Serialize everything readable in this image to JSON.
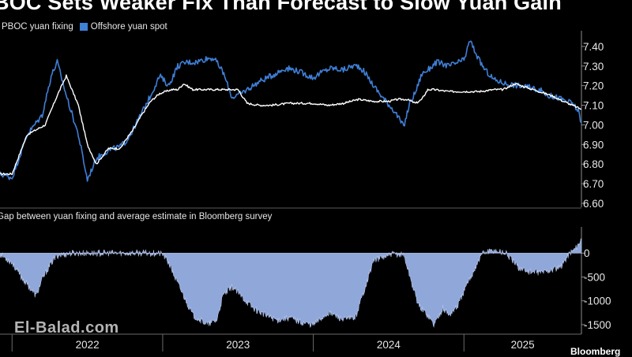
{
  "header": {
    "title": "BOC Sets Weaker Fix Than Forecast to Slow Yuan Gain"
  },
  "legend": [
    {
      "label": "PBOC yuan fixing",
      "color": "#ffffff"
    },
    {
      "label": "Offshore yuan spot",
      "color": "#3f7fd6"
    }
  ],
  "subtitle": "Gap between yuan fixing and average estimate in Bloomberg survey",
  "watermark": "El-Balad.com",
  "credit": "Bloomberg",
  "colors": {
    "background": "#000000",
    "fixing": "#ffffff",
    "spot": "#3f7fd6",
    "gap_fill": "#8fa7d9",
    "axis": "#8a8a8a"
  },
  "chart_data": [
    {
      "type": "line",
      "title": "BOC Sets Weaker Fix Than Forecast to Slow Yuan Gain",
      "xlabel": "",
      "ylabel": "",
      "x_tick_labels": [
        "2022",
        "2023",
        "2024",
        "2025"
      ],
      "y_ticks": [
        6.6,
        6.7,
        6.8,
        6.9,
        7.0,
        7.1,
        7.2,
        7.3,
        7.4
      ],
      "y_tick_labels": [
        "6.60",
        "6.70",
        "6.80",
        "6.90",
        "7.00",
        "7.10",
        "7.20",
        "7.30",
        "7.40"
      ],
      "ylim": [
        6.58,
        7.48
      ],
      "xlim": [
        2021.92,
        2025.78
      ],
      "series": [
        {
          "name": "PBOC yuan fixing",
          "x": [
            2021.92,
            2022.0,
            2022.1,
            2022.22,
            2022.3,
            2022.36,
            2022.44,
            2022.5,
            2022.56,
            2022.64,
            2022.72,
            2022.76,
            2022.8,
            2022.86,
            2022.92,
            2022.98,
            2023.06,
            2023.1,
            2023.14,
            2023.2,
            2023.3,
            2023.4,
            2023.5,
            2023.56,
            2023.64,
            2023.72,
            2023.84,
            2024.0,
            2024.1,
            2024.2,
            2024.3,
            2024.4,
            2024.5,
            2024.56,
            2024.62,
            2024.68,
            2024.72,
            2024.76,
            2024.8,
            2024.9,
            2025.0,
            2025.1,
            2025.2,
            2025.26,
            2025.34,
            2025.42,
            2025.5,
            2025.58,
            2025.66,
            2025.72,
            2025.78
          ],
          "values": [
            6.75,
            6.75,
            6.95,
            7.0,
            7.15,
            7.25,
            7.1,
            6.9,
            6.8,
            6.88,
            6.88,
            6.93,
            6.97,
            7.05,
            7.12,
            7.16,
            7.18,
            7.18,
            7.21,
            7.18,
            7.18,
            7.18,
            7.18,
            7.11,
            7.1,
            7.1,
            7.11,
            7.11,
            7.1,
            7.11,
            7.13,
            7.12,
            7.12,
            7.13,
            7.13,
            7.11,
            7.13,
            7.18,
            7.18,
            7.17,
            7.17,
            7.17,
            7.18,
            7.18,
            7.21,
            7.19,
            7.17,
            7.15,
            7.12,
            7.1,
            7.08
          ]
        },
        {
          "name": "Offshore yuan spot",
          "x": [
            2021.92,
            2022.0,
            2022.1,
            2022.2,
            2022.26,
            2022.3,
            2022.36,
            2022.44,
            2022.5,
            2022.56,
            2022.64,
            2022.72,
            2022.76,
            2022.8,
            2022.86,
            2022.92,
            2022.98,
            2023.04,
            2023.1,
            2023.16,
            2023.22,
            2023.3,
            2023.34,
            2023.4,
            2023.46,
            2023.52,
            2023.56,
            2023.64,
            2023.72,
            2023.82,
            2023.88,
            2023.94,
            2024.0,
            2024.06,
            2024.12,
            2024.2,
            2024.26,
            2024.3,
            2024.34,
            2024.4,
            2024.46,
            2024.54,
            2024.6,
            2024.64,
            2024.68,
            2024.72,
            2024.76,
            2024.82,
            2024.9,
            2025.0,
            2025.04,
            2025.1,
            2025.14,
            2025.2,
            2025.28,
            2025.36,
            2025.44,
            2025.5,
            2025.56,
            2025.62,
            2025.68,
            2025.72,
            2025.76,
            2025.78
          ],
          "values": [
            6.75,
            6.73,
            6.95,
            7.05,
            7.25,
            7.32,
            7.15,
            6.95,
            6.72,
            6.83,
            6.87,
            6.89,
            6.92,
            6.97,
            7.06,
            7.15,
            7.25,
            7.2,
            7.3,
            7.32,
            7.32,
            7.34,
            7.34,
            7.27,
            7.14,
            7.16,
            7.18,
            7.22,
            7.25,
            7.29,
            7.28,
            7.26,
            7.24,
            7.27,
            7.29,
            7.28,
            7.3,
            7.3,
            7.27,
            7.2,
            7.14,
            7.07,
            6.99,
            7.11,
            7.17,
            7.26,
            7.28,
            7.32,
            7.3,
            7.33,
            7.43,
            7.33,
            7.28,
            7.23,
            7.21,
            7.2,
            7.19,
            7.18,
            7.15,
            7.14,
            7.12,
            7.11,
            7.07,
            7.01
          ]
        }
      ]
    },
    {
      "type": "area",
      "title": "Gap between yuan fixing and average estimate in Bloomberg survey",
      "xlabel": "",
      "ylabel": "",
      "x_tick_labels": [
        "2022",
        "2023",
        "2024",
        "2025"
      ],
      "y_ticks": [
        0,
        -500,
        -1000,
        -1500
      ],
      "y_tick_labels": [
        "0",
        "-500",
        "-1000",
        "-1500"
      ],
      "ylim": [
        -1700,
        550
      ],
      "xlim": [
        2021.92,
        2025.78
      ],
      "series": [
        {
          "name": "",
          "x": [
            2021.92,
            2022.0,
            2022.06,
            2022.1,
            2022.16,
            2022.2,
            2022.26,
            2022.3,
            2022.4,
            2022.6,
            2022.8,
            2022.96,
            2023.0,
            2023.04,
            2023.08,
            2023.14,
            2023.2,
            2023.3,
            2023.36,
            2023.4,
            2023.46,
            2023.52,
            2023.6,
            2023.68,
            2023.76,
            2023.84,
            2023.92,
            2024.0,
            2024.06,
            2024.1,
            2024.14,
            2024.2,
            2024.28,
            2024.4,
            2024.5,
            2024.54,
            2024.6,
            2024.66,
            2024.7,
            2024.76,
            2024.8,
            2024.86,
            2024.9,
            2024.96,
            2025.0,
            2025.06,
            2025.12,
            2025.2,
            2025.28,
            2025.36,
            2025.44,
            2025.52,
            2025.58,
            2025.64,
            2025.7,
            2025.74,
            2025.78
          ],
          "values": [
            -20,
            -200,
            -500,
            -650,
            -900,
            -550,
            -200,
            -50,
            0,
            0,
            0,
            0,
            -20,
            -200,
            -500,
            -900,
            -1300,
            -1500,
            -1400,
            -900,
            -700,
            -900,
            -1150,
            -1300,
            -1400,
            -1350,
            -1450,
            -1500,
            -1350,
            -1250,
            -1300,
            -1400,
            -1350,
            -150,
            -50,
            -20,
            -30,
            -700,
            -1100,
            -1300,
            -1500,
            -1150,
            -1300,
            -1100,
            -800,
            -400,
            0,
            60,
            0,
            -300,
            -400,
            -400,
            -350,
            -300,
            0,
            100,
            300
          ]
        }
      ]
    }
  ]
}
